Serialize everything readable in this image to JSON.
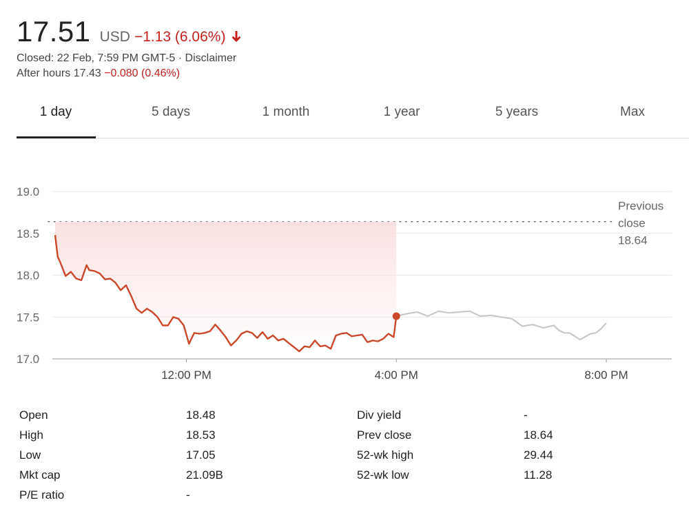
{
  "quote": {
    "price": "17.51",
    "currency": "USD",
    "change": "−1.13 (6.06%)",
    "closed_text": "Closed: 22 Feb, 7:59 PM GMT-5 · ",
    "disclaimer": "Disclaimer",
    "after_hours_label": "After hours 17.43 ",
    "after_hours_change": "−0.080 (0.46%)",
    "direction": "down"
  },
  "tabs": [
    {
      "label": "1 day",
      "active": true
    },
    {
      "label": "5 days",
      "active": false
    },
    {
      "label": "1 month",
      "active": false
    },
    {
      "label": "1 year",
      "active": false
    },
    {
      "label": "5 years",
      "active": false
    },
    {
      "label": "Max",
      "active": false
    }
  ],
  "chart_data": {
    "type": "line",
    "y_ticks": [
      "19.0",
      "18.5",
      "18.0",
      "17.5",
      "17.0"
    ],
    "ylim": [
      17.0,
      19.0
    ],
    "x_ticks": [
      "12:00 PM",
      "4:00 PM",
      "8:00 PM"
    ],
    "x_tick_hours": [
      12,
      16,
      20
    ],
    "xlim_hours": [
      9.5,
      20.0
    ],
    "prev_close": {
      "label_line1": "Previous",
      "label_line2": "close",
      "value": "18.64"
    },
    "colors": {
      "regular": "#c9482c",
      "after_hours": "#c8c8c8",
      "fill": "#f9dede",
      "prev_close_line": "#666666",
      "grid": "#e8e8e8"
    },
    "series": [
      {
        "session": "regular",
        "x": [
          9.5,
          9.55,
          9.6,
          9.7,
          9.8,
          9.9,
          10.0,
          10.1,
          10.15,
          10.25,
          10.35,
          10.45,
          10.55,
          10.65,
          10.75,
          10.85,
          10.95,
          11.05,
          11.15,
          11.25,
          11.35,
          11.45,
          11.55,
          11.65,
          11.75,
          11.85,
          11.95,
          12.05,
          12.15,
          12.25,
          12.35,
          12.45,
          12.55,
          12.65,
          12.75,
          12.85,
          12.95,
          13.05,
          13.15,
          13.25,
          13.35,
          13.45,
          13.55,
          13.65,
          13.75,
          13.85,
          13.95,
          14.05,
          14.15,
          14.25,
          14.35,
          14.45,
          14.55,
          14.65,
          14.75,
          14.85,
          14.95,
          15.05,
          15.15,
          15.25,
          15.35,
          15.45,
          15.55,
          15.65,
          15.75,
          15.85,
          15.95
        ],
        "y": [
          18.48,
          18.22,
          18.15,
          17.99,
          18.04,
          17.96,
          17.94,
          18.12,
          18.06,
          18.05,
          18.02,
          17.95,
          17.96,
          17.91,
          17.82,
          17.88,
          17.75,
          17.6,
          17.55,
          17.6,
          17.56,
          17.5,
          17.4,
          17.4,
          17.5,
          17.48,
          17.4,
          17.18,
          17.31,
          17.3,
          17.31,
          17.33,
          17.41,
          17.34,
          17.26,
          17.16,
          17.22,
          17.3,
          17.33,
          17.31,
          17.25,
          17.32,
          17.24,
          17.28,
          17.22,
          17.24,
          17.19,
          17.14,
          17.09,
          17.15,
          17.14,
          17.22,
          17.15,
          17.16,
          17.12,
          17.28,
          17.3,
          17.31,
          17.27,
          17.28,
          17.29,
          17.2,
          17.22,
          17.21,
          17.24,
          17.3,
          17.26
        ],
        "end_point": {
          "x": 16.0,
          "y": 17.51
        }
      },
      {
        "session": "after_hours",
        "x": [
          16.0,
          16.2,
          16.4,
          16.6,
          16.8,
          17.0,
          17.2,
          17.4,
          17.6,
          17.8,
          18.0,
          18.2,
          18.4,
          18.6,
          18.8,
          19.0,
          19.1,
          19.2,
          19.3,
          19.5,
          19.7,
          19.8,
          19.9,
          20.0
        ],
        "y": [
          17.51,
          17.54,
          17.56,
          17.51,
          17.57,
          17.55,
          17.56,
          17.57,
          17.51,
          17.52,
          17.5,
          17.48,
          17.39,
          17.41,
          17.37,
          17.4,
          17.34,
          17.31,
          17.31,
          17.23,
          17.3,
          17.31,
          17.36,
          17.43
        ]
      }
    ]
  },
  "stats": {
    "left": [
      {
        "label": "Open",
        "value": "18.48"
      },
      {
        "label": "High",
        "value": "18.53"
      },
      {
        "label": "Low",
        "value": "17.05"
      },
      {
        "label": "Mkt cap",
        "value": "21.09B"
      },
      {
        "label": "P/E ratio",
        "value": "-"
      }
    ],
    "right": [
      {
        "label": "Div yield",
        "value": "-"
      },
      {
        "label": "Prev close",
        "value": "18.64"
      },
      {
        "label": "52-wk high",
        "value": "29.44"
      },
      {
        "label": "52-wk low",
        "value": "11.28"
      }
    ]
  }
}
